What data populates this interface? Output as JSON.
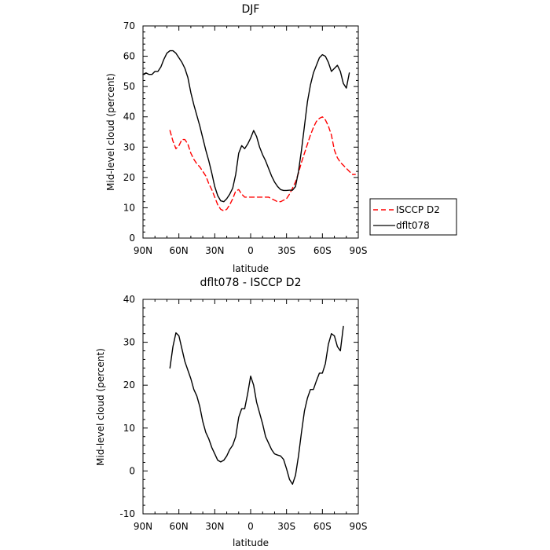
{
  "chart_data": [
    {
      "type": "line",
      "title": "DJF",
      "xlabel": "latitude",
      "ylabel": "Mid-level cloud (percent)",
      "xlim": [
        -90,
        90
      ],
      "ylim": [
        0,
        70
      ],
      "xticks": [
        {
          "value": -90,
          "label": "90N"
        },
        {
          "value": -60,
          "label": "60N"
        },
        {
          "value": -30,
          "label": "30N"
        },
        {
          "value": 0,
          "label": "0"
        },
        {
          "value": 30,
          "label": "30S"
        },
        {
          "value": 60,
          "label": "60S"
        },
        {
          "value": 90,
          "label": "90S"
        }
      ],
      "yticks": [
        0,
        10,
        20,
        30,
        40,
        50,
        60,
        70
      ],
      "legend_position": "right",
      "series": [
        {
          "name": "ISCCP D2",
          "color": "#ff0000",
          "dash": "dashed",
          "points": [
            [
              -67.5,
              35.5
            ],
            [
              -65,
              32
            ],
            [
              -62.5,
              29.5
            ],
            [
              -60,
              30.5
            ],
            [
              -57.5,
              32.5
            ],
            [
              -55,
              32.5
            ],
            [
              -52.5,
              31
            ],
            [
              -50,
              28
            ],
            [
              -47.5,
              26
            ],
            [
              -45,
              24.5
            ],
            [
              -42.5,
              23.5
            ],
            [
              -40,
              22
            ],
            [
              -37.5,
              20.5
            ],
            [
              -35,
              18
            ],
            [
              -32.5,
              16
            ],
            [
              -30,
              13.5
            ],
            [
              -27.5,
              11
            ],
            [
              -25,
              9.5
            ],
            [
              -22.5,
              9
            ],
            [
              -20,
              9.5
            ],
            [
              -17.5,
              11
            ],
            [
              -15,
              13
            ],
            [
              -12.5,
              15.5
            ],
            [
              -10,
              16
            ],
            [
              -7.5,
              14.5
            ],
            [
              -5,
              13.5
            ],
            [
              -2.5,
              13.5
            ],
            [
              0,
              13.5
            ],
            [
              2.5,
              13.5
            ],
            [
              5,
              13.5
            ],
            [
              7.5,
              13.5
            ],
            [
              10,
              13.5
            ],
            [
              12.5,
              13.5
            ],
            [
              15,
              13.5
            ],
            [
              17.5,
              13
            ],
            [
              20,
              12.5
            ],
            [
              22.5,
              12
            ],
            [
              25,
              12
            ],
            [
              27.5,
              12.5
            ],
            [
              30,
              13
            ],
            [
              32.5,
              14.5
            ],
            [
              35,
              16.5
            ],
            [
              37.5,
              18.5
            ],
            [
              40,
              21.5
            ],
            [
              42.5,
              25
            ],
            [
              45,
              28
            ],
            [
              47.5,
              31
            ],
            [
              50,
              34
            ],
            [
              52.5,
              36.5
            ],
            [
              55,
              38.5
            ],
            [
              57.5,
              39.5
            ],
            [
              60,
              40
            ],
            [
              62.5,
              39
            ],
            [
              65,
              37
            ],
            [
              67.5,
              34
            ],
            [
              70,
              29
            ],
            [
              72.5,
              26.5
            ],
            [
              75,
              25
            ],
            [
              77.5,
              24
            ],
            [
              80,
              23
            ],
            [
              82.5,
              22
            ],
            [
              85,
              21
            ],
            [
              87.5,
              21
            ]
          ]
        },
        {
          "name": "dflt078",
          "color": "#000000",
          "dash": "solid",
          "points": [
            [
              -90,
              54
            ],
            [
              -87.5,
              54.5
            ],
            [
              -85,
              54
            ],
            [
              -82.5,
              54
            ],
            [
              -80,
              55
            ],
            [
              -77.5,
              55
            ],
            [
              -75,
              56.5
            ],
            [
              -72.5,
              59
            ],
            [
              -70,
              61
            ],
            [
              -67.5,
              61.8
            ],
            [
              -65,
              61.8
            ],
            [
              -62.5,
              61
            ],
            [
              -60,
              59.5
            ],
            [
              -57.5,
              58
            ],
            [
              -55,
              56
            ],
            [
              -52.5,
              53
            ],
            [
              -50,
              48
            ],
            [
              -47.5,
              44
            ],
            [
              -45,
              40.5
            ],
            [
              -42.5,
              37
            ],
            [
              -40,
              33
            ],
            [
              -37.5,
              29
            ],
            [
              -35,
              25.5
            ],
            [
              -32.5,
              21.5
            ],
            [
              -30,
              17
            ],
            [
              -27.5,
              14
            ],
            [
              -25,
              12.3
            ],
            [
              -22.5,
              12
            ],
            [
              -20,
              13
            ],
            [
              -17.5,
              14.5
            ],
            [
              -15,
              16.5
            ],
            [
              -12.5,
              21
            ],
            [
              -10,
              28
            ],
            [
              -7.5,
              30.5
            ],
            [
              -5,
              29.5
            ],
            [
              -2.5,
              31
            ],
            [
              0,
              33
            ],
            [
              2.5,
              35.5
            ],
            [
              5,
              33.5
            ],
            [
              7.5,
              30
            ],
            [
              10,
              27.5
            ],
            [
              12.5,
              25.5
            ],
            [
              15,
              23
            ],
            [
              17.5,
              20.5
            ],
            [
              20,
              18.5
            ],
            [
              22.5,
              17
            ],
            [
              25,
              16
            ],
            [
              27.5,
              15.7
            ],
            [
              30,
              15.7
            ],
            [
              32.5,
              15.8
            ],
            [
              35,
              15.8
            ],
            [
              37.5,
              17
            ],
            [
              40,
              22
            ],
            [
              42.5,
              29
            ],
            [
              45,
              37
            ],
            [
              47.5,
              45
            ],
            [
              50,
              50.5
            ],
            [
              52.5,
              54.5
            ],
            [
              55,
              57
            ],
            [
              57.5,
              59.5
            ],
            [
              60,
              60.5
            ],
            [
              62.5,
              60
            ],
            [
              65,
              58
            ],
            [
              67.5,
              55
            ],
            [
              70,
              56
            ],
            [
              72.5,
              57
            ],
            [
              75,
              55
            ],
            [
              77.5,
              51
            ],
            [
              80,
              49.5
            ],
            [
              82.5,
              54.5
            ]
          ]
        }
      ]
    },
    {
      "type": "line",
      "title": "dflt078 - ISCCP D2",
      "xlabel": "latitude",
      "ylabel": "Mid-level cloud (percent)",
      "xlim": [
        -90,
        90
      ],
      "ylim": [
        -10,
        40
      ],
      "xticks": [
        {
          "value": -90,
          "label": "90N"
        },
        {
          "value": -60,
          "label": "60N"
        },
        {
          "value": -30,
          "label": "30N"
        },
        {
          "value": 0,
          "label": "0"
        },
        {
          "value": 30,
          "label": "30S"
        },
        {
          "value": 60,
          "label": "60S"
        },
        {
          "value": 90,
          "label": "90S"
        }
      ],
      "yticks": [
        -10,
        0,
        10,
        20,
        30,
        40
      ],
      "series": [
        {
          "color": "#000000",
          "dash": "solid",
          "points": [
            [
              -67.5,
              24
            ],
            [
              -65,
              29
            ],
            [
              -62.5,
              32.2
            ],
            [
              -60,
              31.5
            ],
            [
              -57.5,
              28.5
            ],
            [
              -55,
              25.5
            ],
            [
              -52.5,
              23.5
            ],
            [
              -50,
              21.5
            ],
            [
              -47.5,
              19
            ],
            [
              -45,
              17.5
            ],
            [
              -42.5,
              15
            ],
            [
              -40,
              11.5
            ],
            [
              -37.5,
              9
            ],
            [
              -35,
              7.5
            ],
            [
              -32.5,
              5.5
            ],
            [
              -30,
              4
            ],
            [
              -27.5,
              2.5
            ],
            [
              -25,
              2.1
            ],
            [
              -22.5,
              2.5
            ],
            [
              -20,
              3.5
            ],
            [
              -17.5,
              5
            ],
            [
              -15,
              6
            ],
            [
              -12.5,
              8
            ],
            [
              -10,
              12.5
            ],
            [
              -7.5,
              14.5
            ],
            [
              -5,
              14.5
            ],
            [
              -2.5,
              18
            ],
            [
              0,
              22.1
            ],
            [
              2.5,
              20
            ],
            [
              5,
              16
            ],
            [
              7.5,
              13.5
            ],
            [
              10,
              11
            ],
            [
              12.5,
              8
            ],
            [
              15,
              6.5
            ],
            [
              17.5,
              5
            ],
            [
              20,
              4
            ],
            [
              22.5,
              3.7
            ],
            [
              25,
              3.5
            ],
            [
              27.5,
              2.7
            ],
            [
              30,
              0.5
            ],
            [
              32.5,
              -2
            ],
            [
              35,
              -3.1
            ],
            [
              37.5,
              -1
            ],
            [
              40,
              3.5
            ],
            [
              42.5,
              9
            ],
            [
              45,
              14
            ],
            [
              47.5,
              17
            ],
            [
              50,
              19
            ],
            [
              52.5,
              19
            ],
            [
              55,
              21
            ],
            [
              57.5,
              22.8
            ],
            [
              60,
              22.8
            ],
            [
              62.5,
              25
            ],
            [
              65,
              29.5
            ],
            [
              67.5,
              32
            ],
            [
              70,
              31.5
            ],
            [
              72.5,
              29
            ],
            [
              75,
              28
            ],
            [
              77.5,
              33.7
            ]
          ]
        }
      ]
    }
  ]
}
